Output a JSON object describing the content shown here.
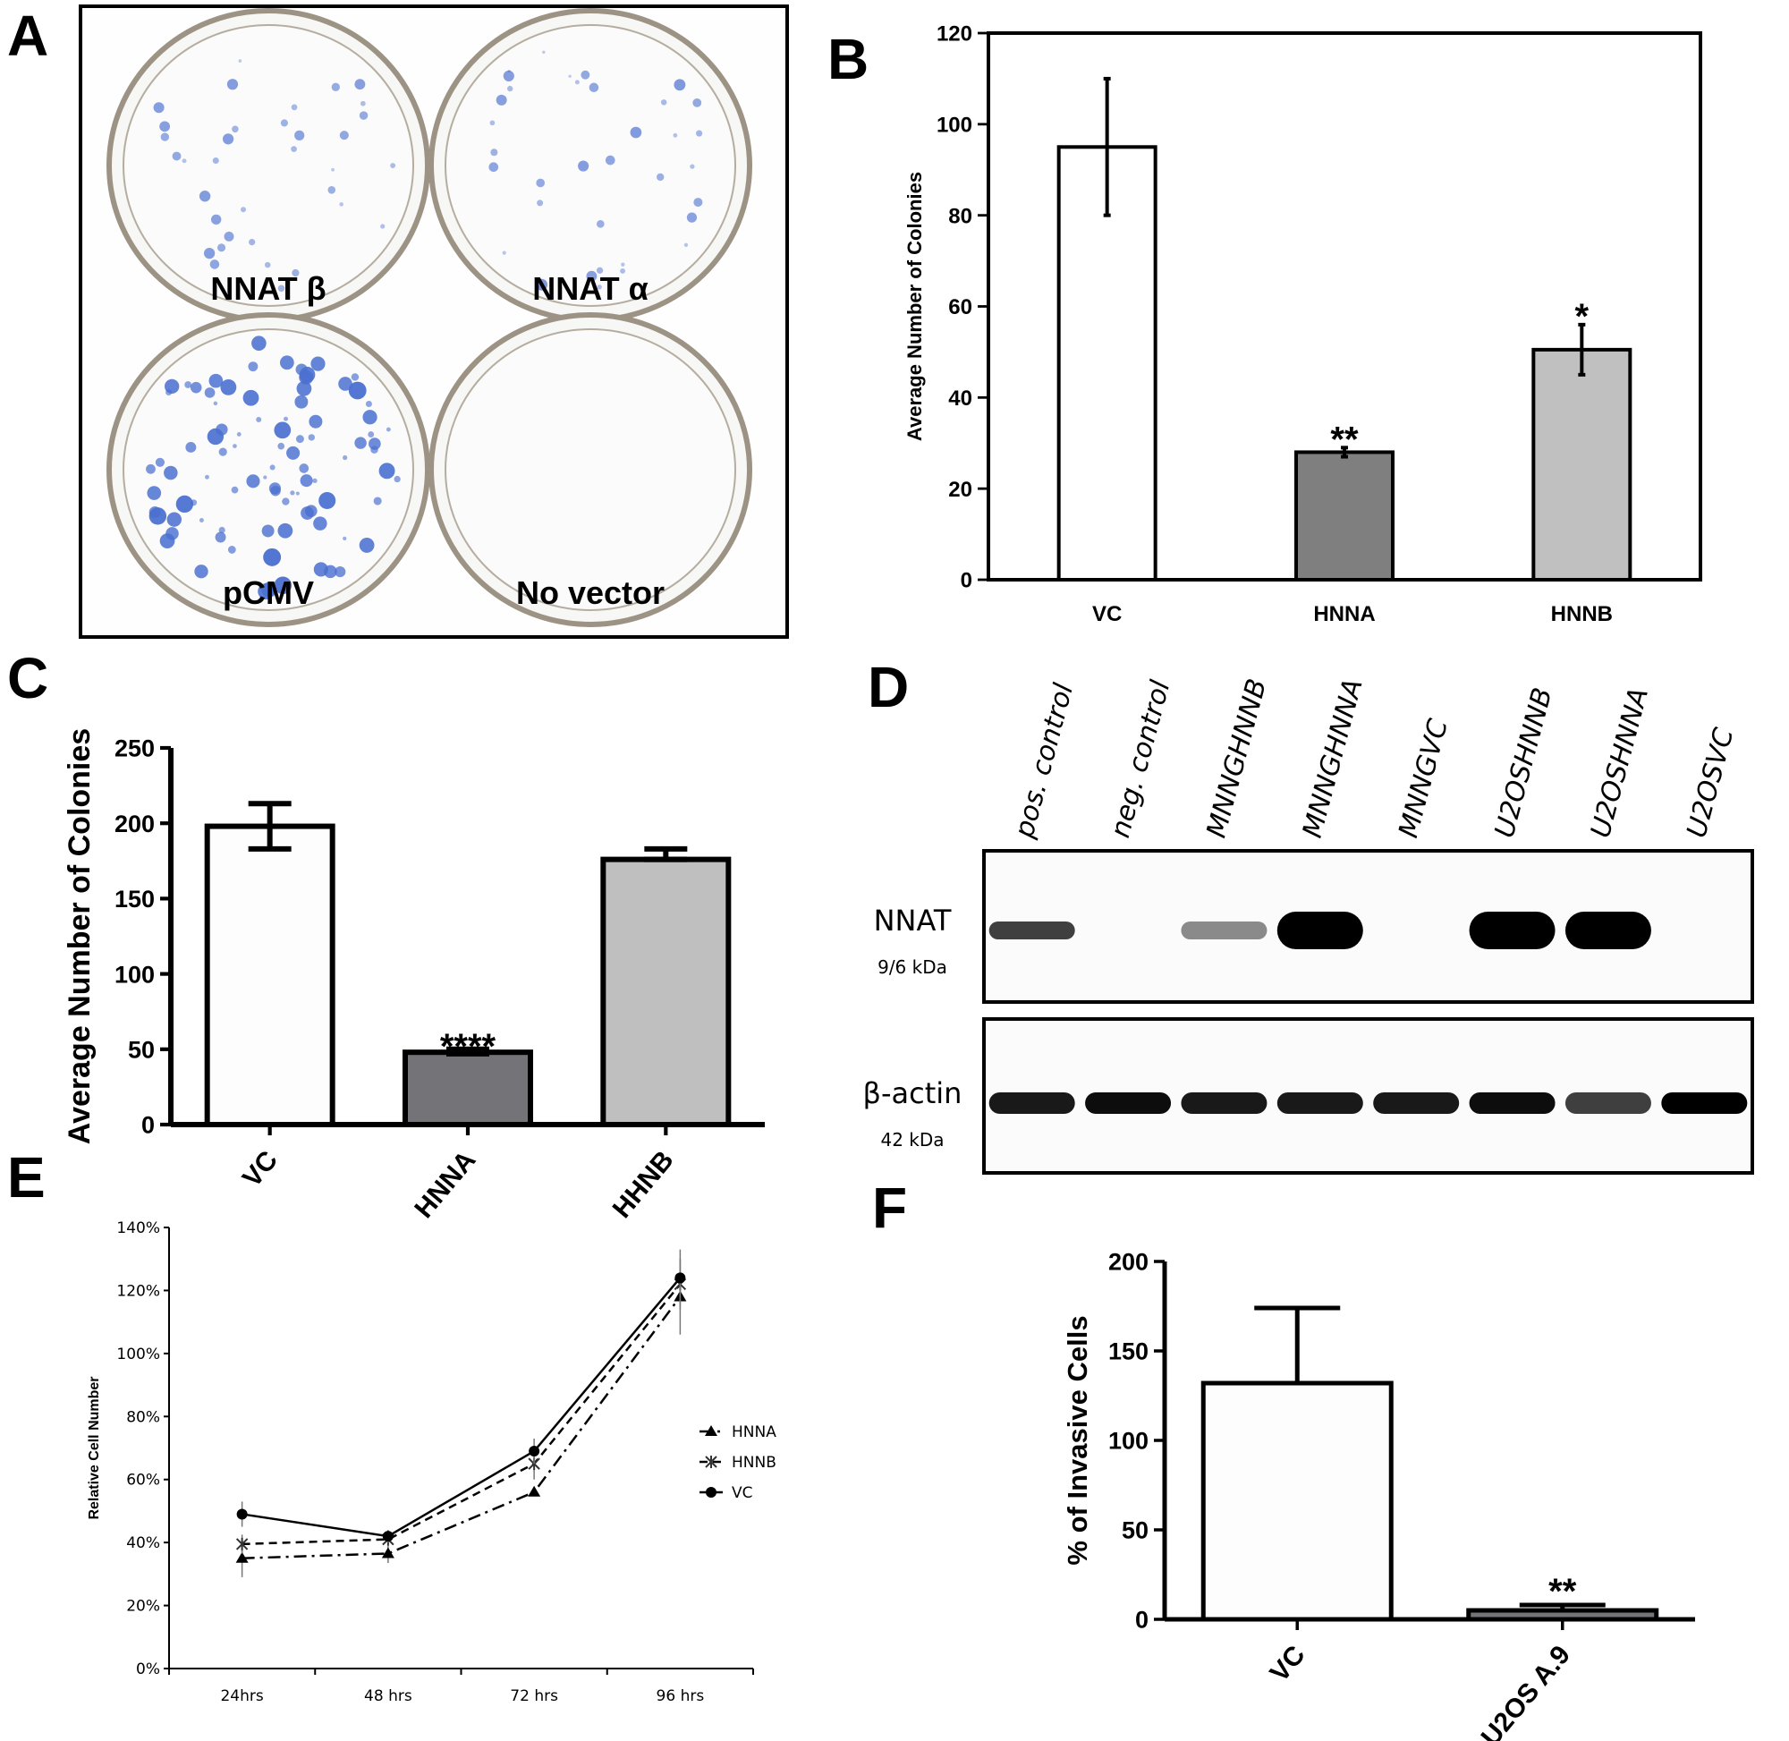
{
  "panels": {
    "a": "A",
    "b": "B",
    "c": "C",
    "d": "D",
    "e": "E",
    "f": "F"
  },
  "panel_a": {
    "plates": [
      {
        "label": "NNAT β",
        "colonies": "few"
      },
      {
        "label": "NNAT α",
        "colonies": "few"
      },
      {
        "label": "pCMV",
        "colonies": "many"
      },
      {
        "label": "No vector",
        "colonies": "none"
      }
    ],
    "stain_color": "#4a6fd0"
  },
  "chart_data": [
    {
      "panel": "B",
      "type": "bar",
      "categories": [
        "VC",
        "HNNA",
        "HNNB"
      ],
      "values": [
        95,
        28,
        50.5
      ],
      "error_low": [
        80,
        27,
        45
      ],
      "error_high": [
        110,
        29,
        56
      ],
      "significance": [
        "",
        "**",
        "*"
      ],
      "bar_colors": [
        "#ffffff",
        "#7f7f7f",
        "#c0c0c0"
      ],
      "ylabel": "Average Number of Colonies",
      "ylim": [
        0,
        120
      ],
      "yticks": [
        "0",
        "20",
        "40",
        "60",
        "80",
        "100",
        "120"
      ],
      "frame": "box",
      "grid": false
    },
    {
      "panel": "C",
      "type": "bar",
      "categories": [
        "VC",
        "HNNA",
        "HHNB"
      ],
      "values": [
        198,
        48,
        176
      ],
      "error_low": [
        183,
        47,
        176
      ],
      "error_high": [
        213,
        50,
        183
      ],
      "significance": [
        "",
        "****",
        ""
      ],
      "bar_colors": [
        "#fdfdfd",
        "#737378",
        "#bfbfbf"
      ],
      "ylabel": "Average Number of Colonies",
      "ylim": [
        0,
        250
      ],
      "yticks": [
        "0",
        "50",
        "100",
        "150",
        "200",
        "250"
      ],
      "grid": false
    },
    {
      "panel": "E",
      "type": "line",
      "categories": [
        "24hrs",
        "48 hrs",
        "72 hrs",
        "96 hrs"
      ],
      "series": [
        {
          "name": "HNNA",
          "values": [
            35,
            36.5,
            56,
            118
          ],
          "error": [
            6,
            3,
            0,
            12
          ],
          "marker": "triangle",
          "dash": "dashdot"
        },
        {
          "name": "HNNB",
          "values": [
            39.5,
            41,
            65,
            122
          ],
          "error": [
            3,
            2,
            5,
            8
          ],
          "marker": "star",
          "dash": "dash"
        },
        {
          "name": "VC",
          "values": [
            49,
            42,
            69,
            124
          ],
          "error": [
            4,
            2,
            4,
            9
          ],
          "marker": "circle",
          "dash": "solid"
        }
      ],
      "ylabel": "Relative Cell Number",
      "ylim": [
        0,
        140
      ],
      "yticks": [
        "0%",
        "20%",
        "40%",
        "60%",
        "80%",
        "100%",
        "120%",
        "140%"
      ],
      "legend": "right",
      "grid": false
    },
    {
      "panel": "F",
      "type": "bar",
      "categories": [
        "VC",
        "U2OS A.9"
      ],
      "values": [
        132,
        5
      ],
      "error_high": [
        174,
        8
      ],
      "significance": [
        "",
        "**"
      ],
      "bar_colors": [
        "#fdfdfd",
        "#737378"
      ],
      "ylabel": "% of Invasive Cells",
      "ylim": [
        0,
        200
      ],
      "yticks": [
        "0",
        "50",
        "100",
        "150",
        "200"
      ],
      "grid": false
    }
  ],
  "panel_d": {
    "lanes": [
      "pos. control",
      "neg. control",
      "MNNGHNNB",
      "MNNGHNNA",
      "MNNGVC",
      "U2OSHNNB",
      "U2OSHNNA",
      "U2OSVC"
    ],
    "blots": [
      {
        "protein": "NNAT",
        "size": "9/6 kDa",
        "intensity": [
          0.75,
          0,
          0.45,
          1,
          0,
          1,
          1,
          0
        ]
      },
      {
        "protein": "β-actin",
        "size": "42 kDa",
        "intensity": [
          0.9,
          0.95,
          0.9,
          0.9,
          0.9,
          0.95,
          0.75,
          1
        ]
      }
    ]
  }
}
